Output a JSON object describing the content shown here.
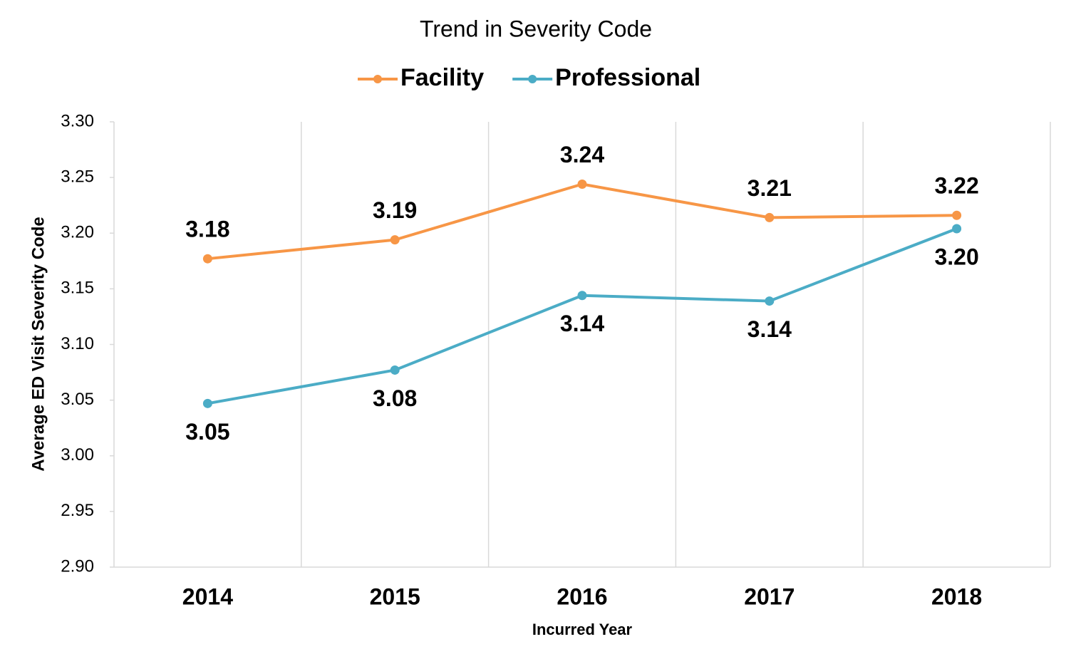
{
  "chart_data": {
    "type": "line",
    "title": "Trend in Severity Code",
    "x_label": "Incurred Year",
    "y_label": "Average ED Visit Severity Code",
    "categories": [
      "2014",
      "2015",
      "2016",
      "2017",
      "2018"
    ],
    "series": [
      {
        "name": "Facility",
        "color": "#f79646",
        "values": [
          3.177,
          3.194,
          3.244,
          3.214,
          3.216
        ],
        "value_labels": [
          "3.18",
          "3.19",
          "3.24",
          "3.21",
          "3.22"
        ]
      },
      {
        "name": "Professional",
        "color": "#4bacc6",
        "values": [
          3.047,
          3.077,
          3.144,
          3.139,
          3.204
        ],
        "value_labels": [
          "3.05",
          "3.08",
          "3.14",
          "3.14",
          "3.20"
        ]
      }
    ],
    "ylim": [
      2.9,
      3.3
    ],
    "yticks": [
      {
        "value": 2.9,
        "label": "2.90"
      },
      2.95,
      {
        "value": 3.0,
        "label": "3.00"
      },
      3.05,
      {
        "value": 3.1,
        "label": "3.10"
      },
      3.15,
      {
        "value": 3.2,
        "label": "3.20"
      },
      3.25,
      {
        "value": 3.3,
        "label": "3.30"
      }
    ],
    "grid": true,
    "legend": "top"
  }
}
